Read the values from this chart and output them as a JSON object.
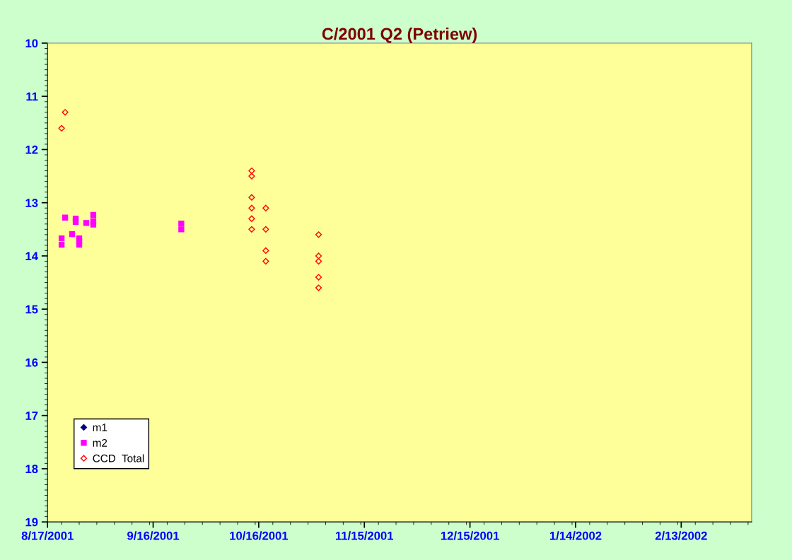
{
  "chart_data": {
    "type": "scatter",
    "title": "C/2001 Q2 (Petriew)",
    "xlim": [
      "2001-08-17",
      "2002-03-05"
    ],
    "xticks": [
      {
        "value": "2001-08-17",
        "label": "8/17/2001"
      },
      {
        "value": "2001-09-16",
        "label": "9/16/2001"
      },
      {
        "value": "2001-10-16",
        "label": "10/16/2001"
      },
      {
        "value": "2001-11-15",
        "label": "11/15/2001"
      },
      {
        "value": "2001-12-15",
        "label": "12/15/2001"
      },
      {
        "value": "2002-01-14",
        "label": "1/14/2002"
      },
      {
        "value": "2002-02-13",
        "label": "2/13/2002"
      }
    ],
    "ylim": [
      19,
      10
    ],
    "yticks": [
      10,
      11,
      12,
      13,
      14,
      15,
      16,
      17,
      18,
      19
    ],
    "grid": false,
    "legend": "bottom left",
    "series": [
      {
        "name": "m1",
        "color": "#000080",
        "marker": "diamond"
      },
      {
        "name": "m2",
        "color": "#ff00ff",
        "marker": "square",
        "x": [
          "2001-08-21",
          "2001-08-21",
          "2001-08-22",
          "2001-08-24",
          "2001-08-25",
          "2001-08-25",
          "2001-08-26",
          "2001-08-26",
          "2001-08-26",
          "2001-08-28",
          "2001-08-30",
          "2001-08-30",
          "2001-08-30",
          "2001-09-24",
          "2001-09-24"
        ],
        "values": [
          13.67,
          13.79,
          13.28,
          13.59,
          13.3,
          13.36,
          13.67,
          13.72,
          13.79,
          13.38,
          13.23,
          13.35,
          13.41,
          13.39,
          13.5
        ]
      },
      {
        "name": "CCD  Total",
        "color": "#ff0000",
        "marker": "diamond",
        "x": [
          "2001-08-21",
          "2001-08-22",
          "2001-10-14",
          "2001-10-14",
          "2001-10-14",
          "2001-10-14",
          "2001-10-14",
          "2001-10-14",
          "2001-10-18",
          "2001-10-18",
          "2001-10-18",
          "2001-10-18",
          "2001-11-02",
          "2001-11-02",
          "2001-11-02",
          "2001-11-02",
          "2001-11-02"
        ],
        "values": [
          11.6,
          11.3,
          12.4,
          12.5,
          12.9,
          13.1,
          13.3,
          13.5,
          13.1,
          13.5,
          13.9,
          14.1,
          13.6,
          14.0,
          14.1,
          14.4,
          14.6
        ]
      }
    ]
  }
}
